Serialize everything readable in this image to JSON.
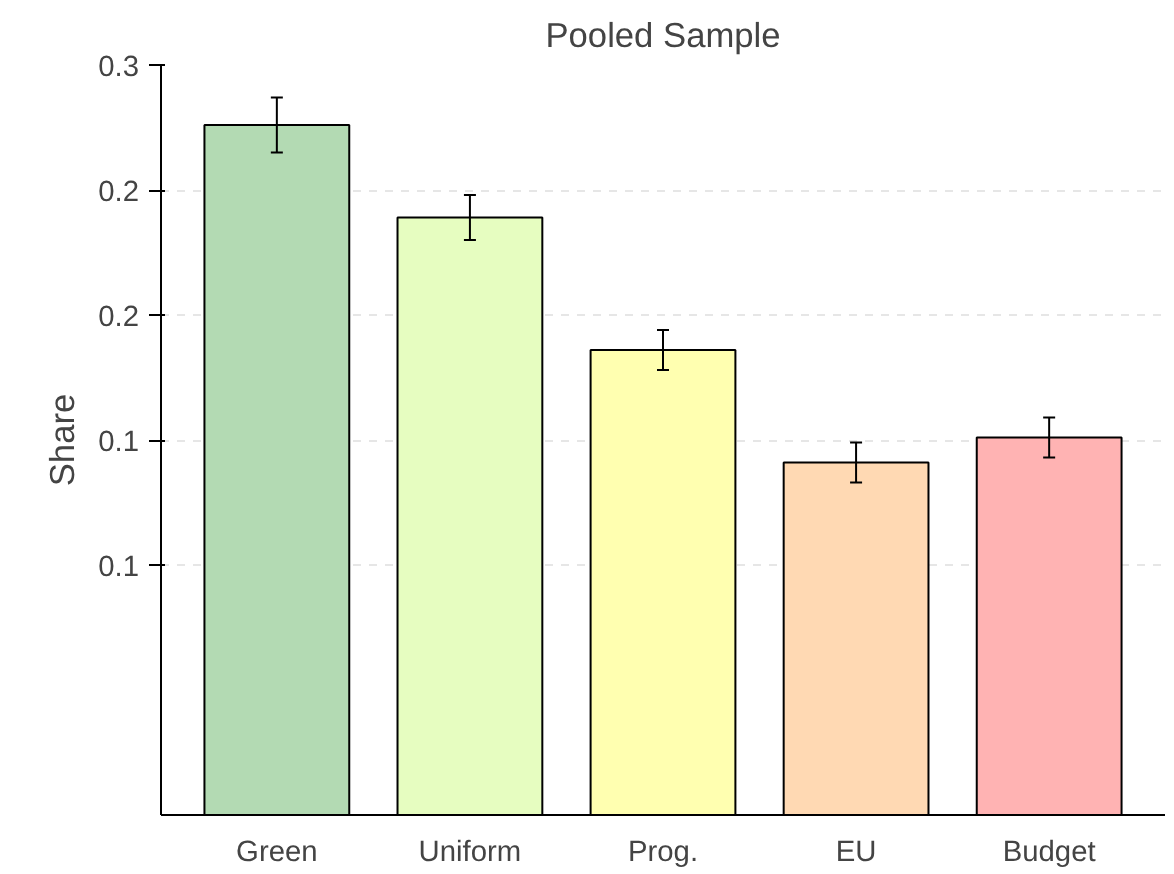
{
  "chart_data": {
    "type": "bar",
    "title": "Pooled Sample",
    "ylabel": "Share",
    "categories": [
      "Green",
      "Uniform",
      "Prog.",
      "EU",
      "Budget"
    ],
    "values": [
      0.276,
      0.239,
      0.186,
      0.141,
      0.151
    ],
    "errors": [
      0.011,
      0.009,
      0.008,
      0.008,
      0.008
    ],
    "colors": [
      "#b3dab3",
      "#e6fdc0",
      "#ffffb0",
      "#ffd9b3",
      "#ffb3b3"
    ],
    "ylim": [
      0,
      0.3
    ],
    "yticks": [
      {
        "value": 0.1,
        "label": "0.1"
      },
      {
        "value": 0.15,
        "label": "0.1"
      },
      {
        "value": 0.2,
        "label": "0.2"
      },
      {
        "value": 0.25,
        "label": "0.2"
      },
      {
        "value": 0.3,
        "label": "0.3"
      }
    ],
    "grid": "y"
  }
}
